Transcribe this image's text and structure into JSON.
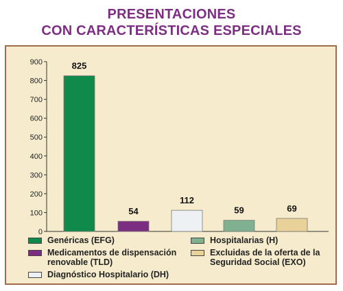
{
  "title_line1": "PRESENTACIONES",
  "title_line2": "CON CARACTERÍSTICAS ESPECIALES",
  "colors": {
    "title": "#7d2e83",
    "panel_bg": "#f6eccd",
    "panel_border": "#a06a4e"
  },
  "chart_data": {
    "type": "bar",
    "categories": [
      "EFG",
      "TLD",
      "DH",
      "H",
      "EXO"
    ],
    "values": [
      825,
      54,
      112,
      59,
      69
    ],
    "data_labels": [
      "825",
      "54",
      "112",
      "59",
      "69"
    ],
    "colors": [
      "#0f8a4a",
      "#7b2d82",
      "#eef1f3",
      "#7fb191",
      "#e8d29a"
    ],
    "ylim": [
      0,
      900
    ],
    "yticks": [
      0,
      100,
      200,
      300,
      400,
      500,
      600,
      700,
      800,
      900
    ],
    "ytick_labels": [
      "0",
      "100",
      "200",
      "300",
      "400",
      "500",
      "600",
      "700",
      "800",
      "900"
    ],
    "grid": false,
    "legend_position": "bottom",
    "legend": [
      {
        "line1": "Genéricas (EFG)",
        "line2": "",
        "color": "#0f8a4a"
      },
      {
        "line1": "Medicamentos de dispensación",
        "line2": "renovable (TLD)",
        "color": "#7b2d82"
      },
      {
        "line1": "Diagnóstico Hospitalario (DH)",
        "line2": "",
        "color": "#eef1f3"
      },
      {
        "line1": "Hospitalarias (H)",
        "line2": "",
        "color": "#7fb191"
      },
      {
        "line1": "Excluidas de la oferta de la",
        "line2": "Seguridad Social (EXO)",
        "color": "#e8d29a"
      }
    ]
  }
}
